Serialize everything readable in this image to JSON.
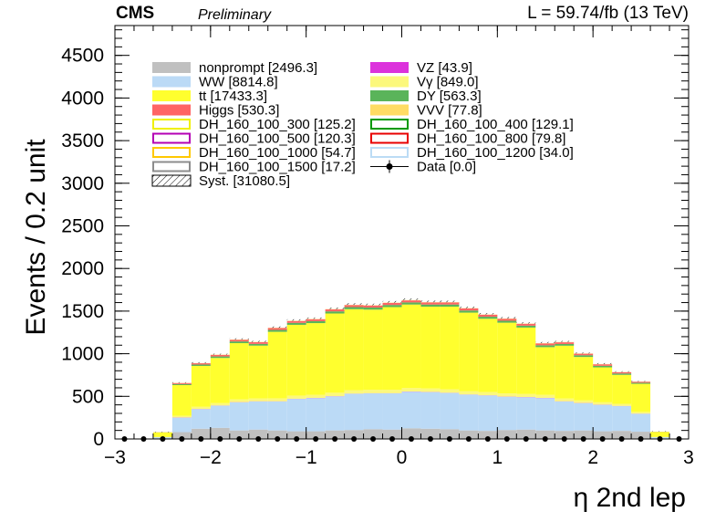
{
  "header": {
    "experiment": "CMS",
    "status": "Preliminary",
    "lumi": "L = 59.74/fb (13 TeV)"
  },
  "chart_data": {
    "type": "bar",
    "stacked": true,
    "xlabel": "η 2nd lep",
    "ylabel": "Events / 0.2 unit",
    "xlim": [
      -3,
      3
    ],
    "ylim": [
      0,
      4850
    ],
    "xticks": [
      -3,
      -2,
      -1,
      0,
      1,
      2,
      3
    ],
    "yticks": [
      0,
      500,
      1000,
      1500,
      2000,
      2500,
      3000,
      3500,
      4000,
      4500
    ],
    "bin_edges": [
      -3.0,
      -2.8,
      -2.6,
      -2.4,
      -2.2,
      -2.0,
      -1.8,
      -1.6,
      -1.4,
      -1.2,
      -1.0,
      -0.8,
      -0.6,
      -0.4,
      -0.2,
      0.0,
      0.2,
      0.4,
      0.6,
      0.8,
      1.0,
      1.2,
      1.4,
      1.6,
      1.8,
      2.0,
      2.2,
      2.4,
      2.6,
      2.8,
      3.0
    ],
    "series": [
      {
        "name": "nonprompt [2496.3]",
        "color": "#c0c0c0",
        "values": [
          0,
          0,
          5,
          80,
          120,
          130,
          100,
          110,
          100,
          90,
          90,
          100,
          105,
          115,
          110,
          125,
          120,
          115,
          100,
          95,
          105,
          110,
          100,
          95,
          100,
          90,
          95,
          85,
          5,
          0
        ]
      },
      {
        "name": "WW [8814.8]",
        "color": "#bbdaf6",
        "values": [
          0,
          0,
          15,
          170,
          230,
          260,
          330,
          330,
          340,
          380,
          390,
          400,
          425,
          420,
          425,
          430,
          430,
          425,
          420,
          415,
          390,
          380,
          380,
          345,
          320,
          310,
          290,
          210,
          15,
          0
        ]
      },
      {
        "name": "VZ [43.9]",
        "color": "#dc32dc",
        "values": [
          0,
          0,
          0,
          2,
          2,
          2,
          2,
          2,
          2,
          2,
          2,
          2,
          2,
          2,
          2,
          2,
          2,
          2,
          2,
          2,
          2,
          2,
          2,
          2,
          2,
          2,
          2,
          2,
          0,
          0
        ]
      },
      {
        "name": "Vγ [849.0]",
        "color": "#fcf87c",
        "values": [
          0,
          0,
          3,
          20,
          25,
          28,
          32,
          33,
          35,
          37,
          37,
          40,
          40,
          40,
          40,
          40,
          40,
          40,
          40,
          38,
          37,
          35,
          35,
          32,
          30,
          28,
          25,
          20,
          3,
          0
        ]
      },
      {
        "name": "tt [17433.3]",
        "color": "#ffff2e",
        "values": [
          0,
          0,
          55,
          360,
          480,
          530,
          660,
          620,
          780,
          830,
          840,
          930,
          950,
          940,
          970,
          980,
          960,
          970,
          920,
          860,
          830,
          780,
          560,
          620,
          510,
          410,
          340,
          330,
          60,
          0
        ]
      },
      {
        "name": "DY [563.3]",
        "color": "#5ab45a",
        "values": [
          0,
          0,
          1,
          12,
          16,
          18,
          20,
          20,
          22,
          23,
          23,
          25,
          25,
          25,
          25,
          25,
          25,
          25,
          25,
          24,
          23,
          22,
          22,
          20,
          20,
          18,
          16,
          12,
          1,
          0
        ]
      },
      {
        "name": "Higgs [530.3]",
        "color": "#ff6464",
        "values": [
          0,
          0,
          1,
          12,
          15,
          18,
          20,
          20,
          22,
          22,
          23,
          23,
          24,
          24,
          24,
          24,
          24,
          24,
          24,
          23,
          23,
          22,
          22,
          20,
          18,
          18,
          15,
          12,
          1,
          0
        ]
      },
      {
        "name": "VVV [77.8]",
        "color": "#ffdc64",
        "values": [
          0,
          0,
          0,
          2,
          2,
          3,
          3,
          3,
          3,
          3,
          3,
          3,
          3,
          3,
          3,
          3,
          3,
          3,
          3,
          3,
          3,
          3,
          3,
          3,
          3,
          3,
          2,
          2,
          0,
          0
        ]
      }
    ],
    "signals": [
      {
        "name": "DH_160_100_300 [125.2]",
        "color": "#f0f000"
      },
      {
        "name": "DH_160_100_400 [129.1]",
        "color": "#009900"
      },
      {
        "name": "DH_160_100_500 [120.3]",
        "color": "#b400b4"
      },
      {
        "name": "DH_160_100_800 [79.8]",
        "color": "#e80000"
      },
      {
        "name": "DH_160_100_1000 [54.7]",
        "color": "#ffc800"
      },
      {
        "name": "DH_160_100_1200 [34.0]",
        "color": "#bcdcf5"
      },
      {
        "name": "DH_160_100_1500 [17.2]",
        "color": "#8c8c8c"
      }
    ],
    "data": {
      "name": "Data [0.0]",
      "values": [
        0,
        0,
        0,
        0,
        0,
        0,
        0,
        0,
        0,
        0,
        0,
        0,
        0,
        0,
        0,
        0,
        0,
        0,
        0,
        0,
        0,
        0,
        0,
        0,
        0,
        0,
        0,
        0,
        0,
        0
      ]
    },
    "syst": {
      "name": "Syst. [31080.5]"
    },
    "legend": {
      "placement": "top-left",
      "col1": [
        "nonprompt [2496.3]",
        "WW [8814.8]",
        "tt [17433.3]",
        "Higgs [530.3]",
        "DH_160_100_300 [125.2]",
        "DH_160_100_500 [120.3]",
        "DH_160_100_1000 [54.7]",
        "DH_160_100_1500 [17.2]",
        "Syst. [31080.5]"
      ],
      "col2": [
        "VZ [43.9]",
        "Vγ [849.0]",
        "DY [563.3]",
        "VVV [77.8]",
        "DH_160_100_400 [129.1]",
        "DH_160_100_800 [79.8]",
        "DH_160_100_1200 [34.0]",
        "Data [0.0]"
      ]
    }
  }
}
